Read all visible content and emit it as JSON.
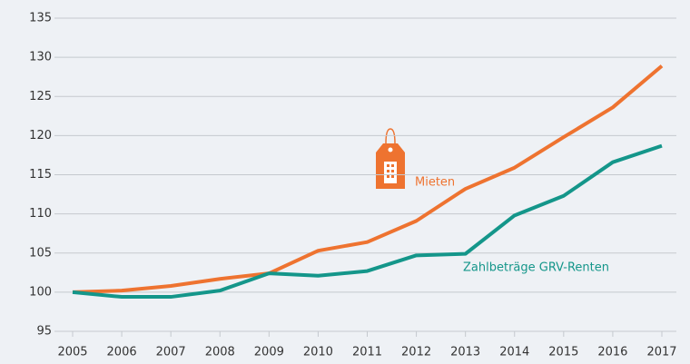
{
  "chart_data": {
    "type": "line",
    "x": [
      2005,
      2006,
      2007,
      2008,
      2009,
      2010,
      2011,
      2012,
      2013,
      2014,
      2015,
      2016,
      2017
    ],
    "series": [
      {
        "name": "Mieten",
        "color": "#ee7330",
        "values": [
          100,
          100.2,
          100.8,
          101.7,
          102.4,
          105.3,
          106.4,
          109.1,
          113.2,
          115.9,
          119.8,
          123.6,
          128.9
        ]
      },
      {
        "name": "Zahlbeträge GRV-Renten",
        "color": "#14968a",
        "values": [
          100,
          99.4,
          99.4,
          100.2,
          102.4,
          102.1,
          102.7,
          104.7,
          104.9,
          109.8,
          112.3,
          116.6,
          118.7
        ]
      }
    ],
    "xlim": [
      2005,
      2017
    ],
    "xticks": [
      2005,
      2006,
      2007,
      2008,
      2009,
      2010,
      2011,
      2012,
      2013,
      2014,
      2015,
      2016,
      2017
    ],
    "ylim": [
      95,
      135
    ],
    "yticks": [
      95,
      100,
      105,
      110,
      115,
      120,
      125,
      130,
      135
    ],
    "grid": true
  }
}
